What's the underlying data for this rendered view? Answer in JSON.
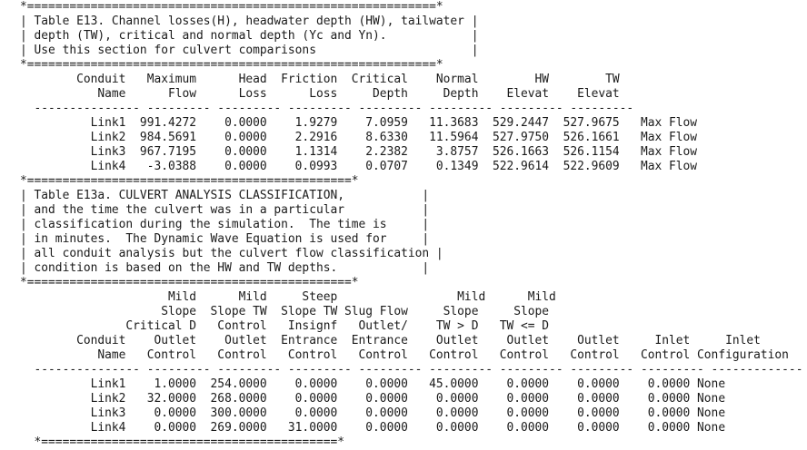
{
  "lines": [
    "*==========================================================*",
    "| Table E13. Channel losses(H), headwater depth (HW), tailwater |",
    "| depth (TW), critical and normal depth (Yc and Yn).            |",
    "| Use this section for culvert comparisons                      |",
    "*==========================================================*",
    "        Conduit   Maximum      Head  Friction  Critical    Normal        HW        TW",
    "           Name      Flow      Loss      Loss     Depth     Depth    Elevat    Elevat",
    "  --------------- --------- --------- --------- --------- --------- --------- ---------",
    "          Link1  991.4272    0.0000    1.9279    7.0959   11.3683  529.2447  527.9675   Max Flow",
    "          Link2  984.5691    0.0000    2.2916    8.6330   11.5964  527.9750  526.1661   Max Flow",
    "          Link3  967.7195    0.0000    1.1314    2.2382    3.8757  526.1663  526.1154   Max Flow",
    "          Link4   -3.0388    0.0000    0.0993    0.0707    0.1349  522.9614  522.9609   Max Flow",
    "*==============================================*",
    "| Table E13a. CULVERT ANALYSIS CLASSIFICATION,           |",
    "| and the time the culvert was in a particular           |",
    "| classification during the simulation.  The time is     |",
    "| in minutes.  The Dynamic Wave Equation is used for     |",
    "| all conduit analysis but the culvert flow classification |",
    "| condition is based on the HW and TW depths.            |",
    "*==============================================*",
    "                     Mild      Mild     Steep                 Mild      Mild",
    "                    Slope  Slope TW  Slope TW Slug Flow     Slope     Slope",
    "               Critical D   Control   Insignf   Outlet/    TW > D   TW <= D",
    "        Conduit    Outlet    Outlet  Entrance  Entrance    Outlet    Outlet    Outlet     Inlet     Inlet",
    "           Name   Control   Control   Control   Control   Control   Control   Control   Control Configuration",
    "  --------------- --------- --------- --------- --------- --------- --------- --------- --------- -------------",
    "          Link1    1.0000  254.0000    0.0000    0.0000   45.0000    0.0000    0.0000    0.0000 None",
    "          Link2   32.0000  268.0000    0.0000    0.0000    0.0000    0.0000    0.0000    0.0000 None",
    "          Link3    0.0000  300.0000    0.0000    0.0000    0.0000    0.0000    0.0000    0.0000 None",
    "          Link4    0.0000  269.0000   31.0000    0.0000    0.0000    0.0000    0.0000    0.0000 None",
    "  *==========================================*"
  ]
}
